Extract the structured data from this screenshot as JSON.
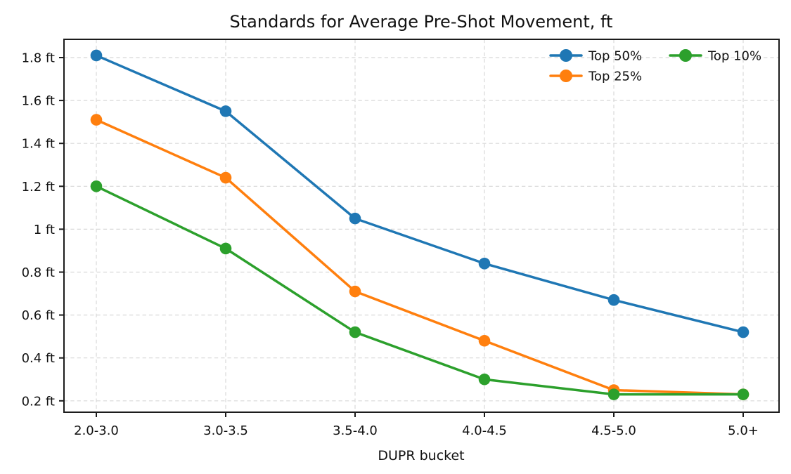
{
  "chart_data": {
    "type": "line",
    "title": "Standards for Average Pre-Shot Movement, ft",
    "xlabel": "DUPR bucket",
    "ylabel": "",
    "categories": [
      "2.0-3.0",
      "3.0-3.5",
      "3.5-4.0",
      "4.0-4.5",
      "4.5-5.0",
      "5.0+"
    ],
    "series": [
      {
        "name": "Top 50%",
        "color": "#1f77b4",
        "values": [
          1.81,
          1.55,
          1.05,
          0.84,
          0.67,
          0.52
        ]
      },
      {
        "name": "Top 25%",
        "color": "#ff7f0e",
        "values": [
          1.51,
          1.24,
          0.71,
          0.48,
          0.25,
          0.23
        ]
      },
      {
        "name": "Top 10%",
        "color": "#2ca02c",
        "values": [
          1.2,
          0.91,
          0.52,
          0.3,
          0.23,
          0.23
        ]
      }
    ],
    "ytick_values": [
      0.2,
      0.4,
      0.6,
      0.8,
      1.0,
      1.2,
      1.4,
      1.6,
      1.8
    ],
    "ytick_labels": [
      "0.2 ft",
      "0.4 ft",
      "0.6 ft",
      "0.8 ft",
      "1 ft",
      "1.2 ft",
      "1.4 ft",
      "1.6 ft",
      "1.8 ft"
    ],
    "ylim": [
      0.15,
      1.89
    ],
    "grid": true,
    "grid_style": "dashed",
    "legend": {
      "position": "upper right",
      "columns": 2,
      "entries": [
        "Top 50%",
        "Top 25%",
        "Top 10%"
      ]
    },
    "colors": {
      "background": "#ffffff",
      "grid": "#d8d8d8",
      "spine": "#1c1c1c",
      "text": "#111111"
    }
  }
}
